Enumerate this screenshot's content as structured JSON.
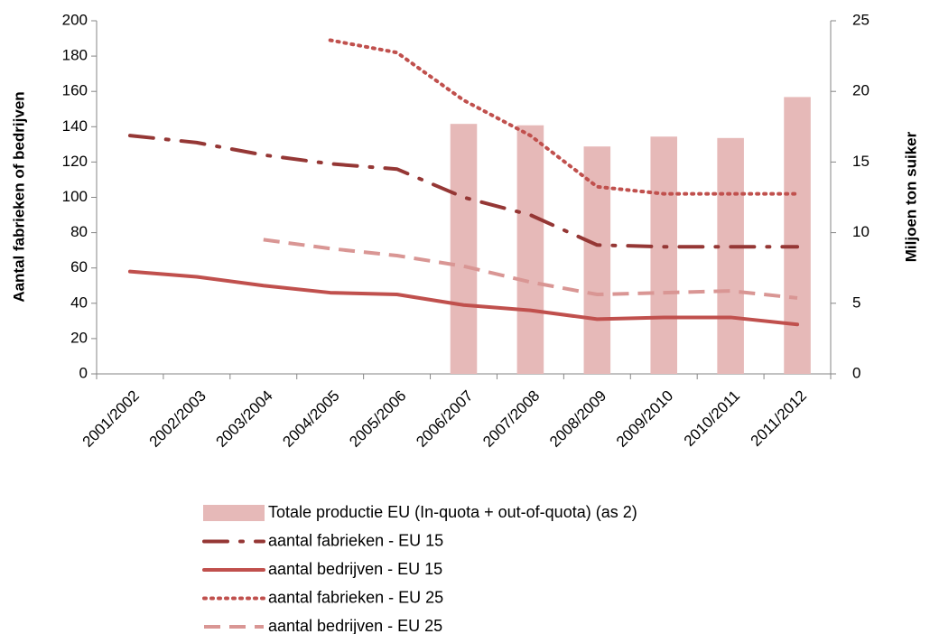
{
  "chart_data": {
    "type": "combo",
    "y_label": "Aantal fabrieken of bedrijven",
    "y2_label": "Miljoen ton suiker",
    "categories": [
      "2001/2002",
      "2002/2003",
      "2003/2004",
      "2004/2005",
      "2005/2006",
      "2006/2007",
      "2007/2008",
      "2008/2009",
      "2009/2010",
      "2010/2011",
      "2011/2012"
    ],
    "ylim": [
      0,
      200
    ],
    "yticks": [
      0,
      20,
      40,
      60,
      80,
      100,
      120,
      140,
      160,
      180,
      200
    ],
    "y2lim": [
      0,
      25
    ],
    "y2ticks": [
      0,
      5,
      10,
      15,
      20,
      25
    ],
    "grid": false,
    "legend": "bottom",
    "series": [
      {
        "name": "Totale productie EU (In-quota + out-of-quota) (as 2)",
        "type": "bar",
        "axis": "y2",
        "color": "#e6b9b8",
        "values": [
          null,
          null,
          null,
          null,
          null,
          17.7,
          17.6,
          16.1,
          16.8,
          16.7,
          19.6
        ]
      },
      {
        "name": "aantal fabrieken - EU 15",
        "type": "line",
        "dash": "long-dash-dot",
        "color": "#953735",
        "values": [
          135,
          131,
          124,
          119,
          116,
          100,
          90,
          73,
          72,
          72,
          72
        ]
      },
      {
        "name": "aantal bedrijven - EU 15",
        "type": "line",
        "dash": "solid",
        "color": "#c0504d",
        "values": [
          58,
          55,
          50,
          46,
          45,
          39,
          36,
          31,
          32,
          32,
          28
        ]
      },
      {
        "name": "aantal fabrieken - EU 25",
        "type": "line",
        "dash": "dot",
        "color": "#c0504d",
        "values": [
          null,
          null,
          null,
          189,
          182,
          155,
          135,
          106,
          102,
          102,
          102
        ]
      },
      {
        "name": "aantal bedrijven - EU 25",
        "type": "line",
        "dash": "dash",
        "color": "#d99694",
        "values": [
          null,
          null,
          76,
          71,
          67,
          61,
          52,
          45,
          46,
          47,
          43
        ]
      }
    ]
  }
}
